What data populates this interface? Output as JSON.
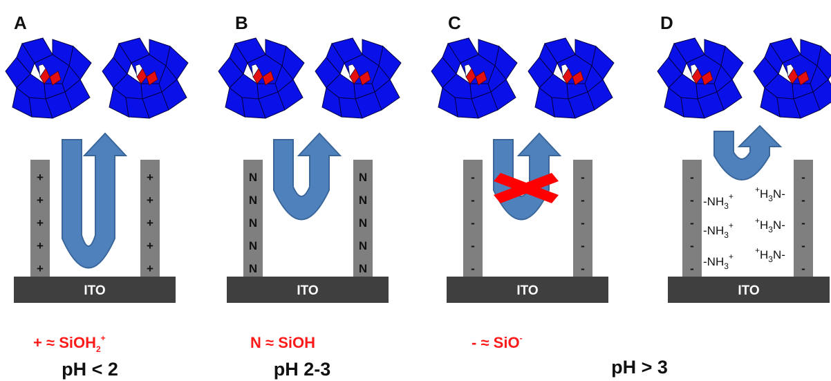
{
  "panels": [
    {
      "letter": "A",
      "ito": "ITO",
      "sign": "+",
      "legend_sign": "+",
      "legend_main": "SiOH",
      "legend_sub": "2",
      "legend_sup": "+"
    },
    {
      "letter": "B",
      "ito": "ITO",
      "sign": "N",
      "legend_sign": "N",
      "legend_main": "SiOH",
      "legend_sub": "",
      "legend_sup": ""
    },
    {
      "letter": "C",
      "ito": "ITO",
      "sign": "-",
      "legend_sign": "-",
      "legend_main": "SiO",
      "legend_sub": "",
      "legend_sup": "-"
    },
    {
      "letter": "D",
      "ito": "ITO",
      "sign": "-",
      "legend_sign": "",
      "legend_main": "",
      "legend_sub": "",
      "legend_sup": ""
    }
  ],
  "approx": "≈",
  "amine_left": {
    "prefix": "-NH",
    "sub": "3",
    "sup": "+"
  },
  "amine_right": {
    "sup": "+",
    "main": "H",
    "sub": "3",
    "suffix": "N-"
  },
  "ph_labels": [
    "pH < 2",
    "pH 2-3",
    "pH > 3"
  ],
  "colors": {
    "polyhedra": "#0a10e8",
    "center": "#e41010",
    "arrow": "#4f81bd",
    "wall": "#7f7f7f",
    "ito": "#3f3f3f",
    "legend": "#ff1a1a",
    "cross": "#ff0000"
  }
}
